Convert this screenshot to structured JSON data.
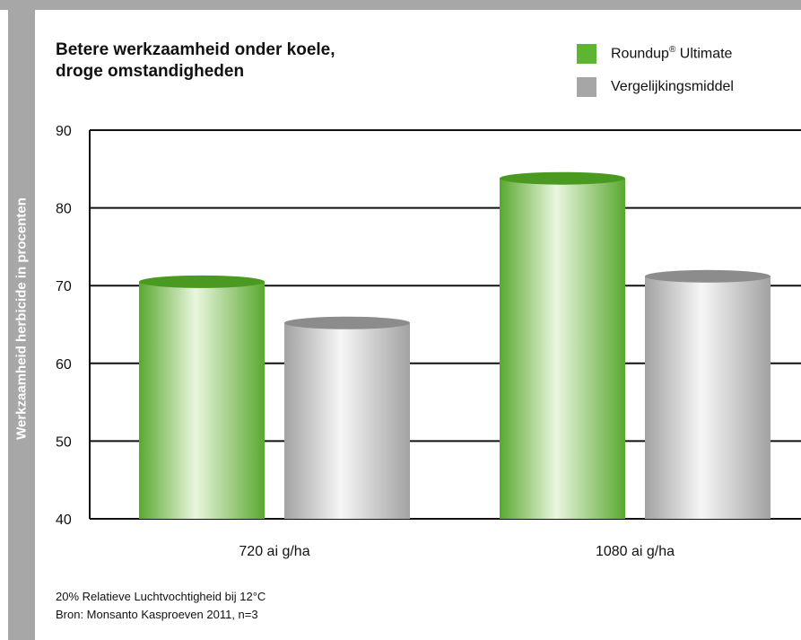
{
  "chart_data": {
    "type": "bar",
    "title": [
      "Betere werkzaamheid onder koele,",
      "droge omstandigheden"
    ],
    "ylabel": "Werkzaamheid herbicide in procenten",
    "ylim": [
      40,
      90
    ],
    "yticks": [
      40,
      50,
      60,
      70,
      80,
      90
    ],
    "categories": [
      "720 ai g/ha",
      "1080 ai g/ha"
    ],
    "series": [
      {
        "name": "Roundup® Ultimate",
        "legend_main": "Roundup",
        "legend_sup": "®",
        "legend_rest": " Ultimate",
        "color": "#5db531",
        "values": [
          70.5,
          83.8
        ]
      },
      {
        "name": "Vergelijkingsmiddel",
        "color": "#a6a6a6",
        "values": [
          65.2,
          71.2
        ]
      }
    ],
    "grid": true,
    "legend_position": "top-right",
    "notes": [
      "20% Relatieve Luchtvochtigheid bij 12°C",
      "Bron: Monsanto Kasproeven 2011, n=3"
    ]
  }
}
